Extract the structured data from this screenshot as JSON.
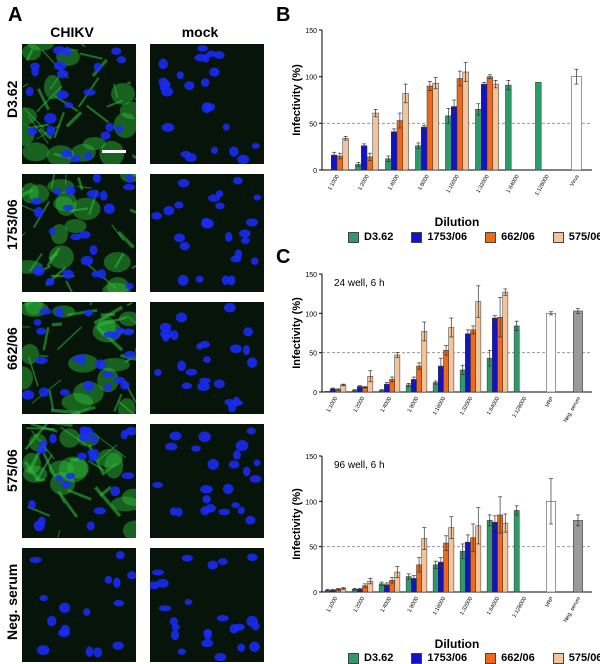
{
  "panel_a": {
    "letter": "A",
    "columns": [
      "CHIKV",
      "mock"
    ],
    "rows": [
      "D3.62",
      "1753/06",
      "662/06",
      "575/06",
      "Neg. serum"
    ],
    "stain_colors": {
      "green": "#2fbf3a",
      "blue": "#1a2cff",
      "background": "#06140a"
    }
  },
  "panel_b": {
    "letter": "B"
  },
  "panel_c": {
    "letter": "C"
  },
  "colors": {
    "D3.62": "#2e9a6a",
    "1753/06": "#1212c8",
    "662/06": "#ee6a1a",
    "575/06": "#f3c39a",
    "Virus": "#ffffff",
    "VRP": "#ffffff",
    "Neg. serum": "#9a9a9a"
  },
  "legend": [
    "D3.62",
    "1753/06",
    "662/06",
    "575/06"
  ],
  "chart_data": [
    {
      "type": "bar",
      "panel": "B",
      "title": "",
      "xlabel": "Dilution",
      "ylabel": "Infectivity (%)",
      "ylim": [
        0,
        150
      ],
      "yticks": [
        0,
        50,
        100,
        150
      ],
      "reference_line": 50,
      "categories": [
        "1:1000",
        "1:2000",
        "1:4000",
        "1:8000",
        "1:16000",
        "1:32000",
        "1:64000",
        "1:128000",
        "Virus"
      ],
      "series": [
        {
          "name": "D3.62",
          "values": [
            null,
            6,
            12,
            26,
            58,
            65,
            91,
            94,
            null
          ],
          "errors": [
            0,
            2,
            3,
            3,
            8,
            6,
            5,
            0,
            0
          ]
        },
        {
          "name": "1753/06",
          "values": [
            16,
            26,
            41,
            46,
            68,
            92,
            null,
            null,
            null
          ],
          "errors": [
            3,
            2,
            3,
            2,
            7,
            2,
            0,
            0,
            0
          ]
        },
        {
          "name": "662/06",
          "values": [
            15,
            14,
            53,
            90,
            98,
            100,
            null,
            null,
            null
          ],
          "errors": [
            3,
            4,
            8,
            5,
            8,
            2,
            0,
            0,
            0
          ]
        },
        {
          "name": "575/06",
          "values": [
            34,
            61,
            82,
            93,
            105,
            92,
            null,
            null,
            null
          ],
          "errors": [
            2,
            4,
            10,
            6,
            10,
            4,
            0,
            0,
            0
          ]
        },
        {
          "name": "Virus",
          "values": [
            null,
            null,
            null,
            null,
            null,
            null,
            null,
            null,
            100
          ],
          "errors": [
            0,
            0,
            0,
            0,
            0,
            0,
            0,
            0,
            8
          ]
        }
      ]
    },
    {
      "type": "bar",
      "panel": "C",
      "title": "24 well, 6 h",
      "xlabel": "",
      "ylabel": "Infectivity (%)",
      "ylim": [
        0,
        150
      ],
      "yticks": [
        0,
        50,
        100,
        150
      ],
      "reference_line": 50,
      "categories": [
        "1:1000",
        "1:2000",
        "1:4000",
        "1:8000",
        "1:16000",
        "1:32000",
        "1:64000",
        "1:128000",
        "VRP",
        "Neg. serum"
      ],
      "series": [
        {
          "name": "D3.62",
          "values": [
            1,
            2,
            2,
            9,
            12,
            28,
            43,
            84,
            null,
            null
          ],
          "errors": [
            0,
            1,
            1,
            2,
            2,
            6,
            10,
            6,
            0,
            0
          ]
        },
        {
          "name": "1753/06",
          "values": [
            4,
            7,
            10,
            16,
            33,
            74,
            94,
            null,
            null,
            null
          ],
          "errors": [
            1,
            1,
            2,
            3,
            10,
            5,
            3,
            0,
            0,
            0
          ]
        },
        {
          "name": "662/06",
          "values": [
            3,
            6,
            16,
            33,
            53,
            79,
            95,
            null,
            null,
            null
          ],
          "errors": [
            1,
            1,
            3,
            4,
            6,
            5,
            25,
            0,
            0,
            0
          ]
        },
        {
          "name": "575/06",
          "values": [
            9,
            20,
            47,
            77,
            82,
            115,
            127,
            null,
            null,
            null
          ],
          "errors": [
            1,
            7,
            3,
            12,
            12,
            20,
            4,
            0,
            0,
            0
          ]
        },
        {
          "name": "VRP",
          "values": [
            null,
            null,
            null,
            null,
            null,
            null,
            null,
            null,
            100,
            null
          ],
          "errors": [
            0,
            0,
            0,
            0,
            0,
            0,
            0,
            0,
            2,
            0
          ]
        },
        {
          "name": "Neg. serum",
          "values": [
            null,
            null,
            null,
            null,
            null,
            null,
            null,
            null,
            null,
            103
          ],
          "errors": [
            0,
            0,
            0,
            0,
            0,
            0,
            0,
            0,
            0,
            3
          ]
        }
      ]
    },
    {
      "type": "bar",
      "panel": "C",
      "title": "96 well, 6 h",
      "xlabel": "Dilution",
      "ylabel": "Infectivity (%)",
      "ylim": [
        0,
        150
      ],
      "yticks": [
        0,
        50,
        100,
        150
      ],
      "reference_line": 50,
      "categories": [
        "1:1000",
        "1:2000",
        "1:4000",
        "1:8000",
        "1:16000",
        "1:32000",
        "1:64000",
        "1:128000",
        "VRP",
        "Neg. serum"
      ],
      "series": [
        {
          "name": "D3.62",
          "values": [
            2,
            3,
            9,
            17,
            30,
            45,
            79,
            90,
            null,
            null
          ],
          "errors": [
            1,
            1,
            2,
            3,
            4,
            8,
            6,
            5,
            0,
            0
          ]
        },
        {
          "name": "1753/06",
          "values": [
            2,
            3,
            8,
            15,
            33,
            55,
            77,
            null,
            null,
            null
          ],
          "errors": [
            1,
            1,
            2,
            3,
            5,
            8,
            7,
            0,
            0,
            0
          ]
        },
        {
          "name": "662/06",
          "values": [
            3,
            7,
            13,
            30,
            54,
            60,
            85,
            null,
            null,
            null
          ],
          "errors": [
            1,
            2,
            3,
            8,
            8,
            15,
            20,
            0,
            0,
            0
          ]
        },
        {
          "name": "575/06",
          "values": [
            4,
            12,
            22,
            59,
            71,
            73,
            76,
            null,
            null,
            null
          ],
          "errors": [
            1,
            3,
            6,
            12,
            12,
            20,
            10,
            0,
            0,
            0
          ]
        },
        {
          "name": "VRP",
          "values": [
            null,
            null,
            null,
            null,
            null,
            null,
            null,
            null,
            100,
            null
          ],
          "errors": [
            0,
            0,
            0,
            0,
            0,
            0,
            0,
            0,
            25,
            0
          ]
        },
        {
          "name": "Neg. serum",
          "values": [
            null,
            null,
            null,
            null,
            null,
            null,
            null,
            null,
            null,
            79
          ],
          "errors": [
            0,
            0,
            0,
            0,
            0,
            0,
            0,
            0,
            0,
            6
          ]
        }
      ]
    }
  ]
}
